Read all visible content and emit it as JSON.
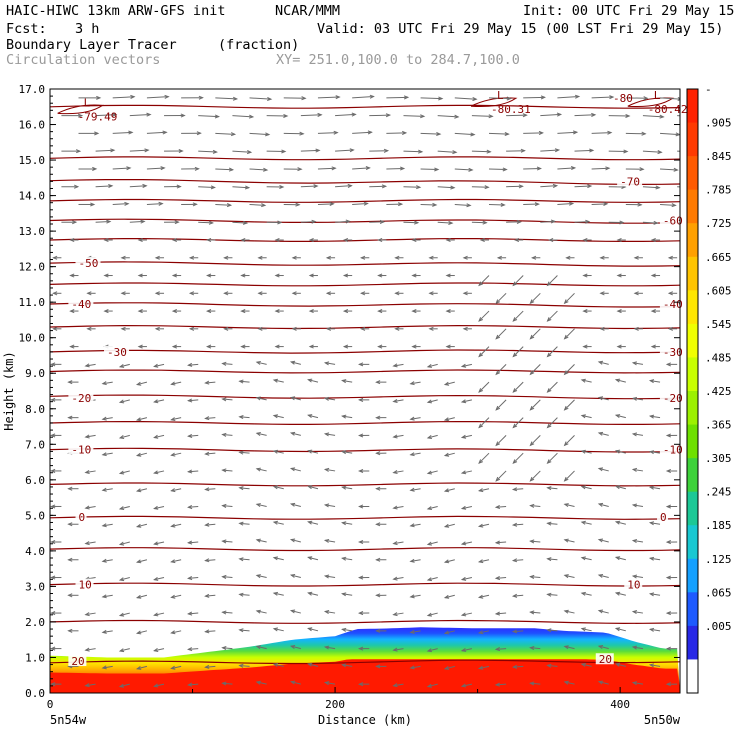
{
  "header": {
    "model_line": "HAIC-HIWC 13km ARW-GFS init",
    "org": "NCAR/MMM",
    "init": "Init: 00 UTC Fri 29 May 15",
    "fcst_label": "Fcst:",
    "fcst_value": "3 h",
    "valid": "Valid: 03 UTC Fri 29 May 15 (00 LST Fri 29 May 15)",
    "field_name": "Boundary Layer Tracer",
    "field_units": "(fraction)",
    "vectors_label": "Circulation vectors",
    "xy_label": "XY= 251.0,100.0 to 284.7,100.0"
  },
  "chart_data": {
    "type": "cross-section",
    "ylabel": "Height (km)",
    "xlabel": "Distance (km)",
    "ylim": [
      0,
      17
    ],
    "xlim": [
      0,
      442
    ],
    "yticks": [
      "0.0",
      "1.0",
      "2.0",
      "3.0",
      "4.0",
      "5.0",
      "6.0",
      "7.0",
      "8.0",
      "9.0",
      "10.0",
      "11.0",
      "12.0",
      "13.0",
      "14.0",
      "15.0",
      "16.0",
      "17.0"
    ],
    "xticks": [
      0,
      200,
      400
    ],
    "xticks_minor": [
      100,
      300
    ],
    "x_end_labels": {
      "left": "5n54w",
      "right": "5n50w"
    },
    "colorbar": {
      "labels": [
        "-",
        ".905",
        ".845",
        ".785",
        ".725",
        ".665",
        ".605",
        ".545",
        ".485",
        ".425",
        ".365",
        ".305",
        ".245",
        ".185",
        ".125",
        ".065",
        ".005"
      ],
      "colors": [
        "#ff2200",
        "#ff3a00",
        "#ff5a00",
        "#ff7a00",
        "#ffa000",
        "#ffc400",
        "#ffe600",
        "#f0ff00",
        "#c8ff00",
        "#9cf000",
        "#6ee000",
        "#3ed23a",
        "#1cc896",
        "#18c8d2",
        "#14a0ff",
        "#1e5aff",
        "#2828e6",
        "#ffffff"
      ]
    },
    "tracer_top_km": [
      [
        0,
        1.05
      ],
      [
        40,
        1.0
      ],
      [
        80,
        1.0
      ],
      [
        100,
        1.1
      ],
      [
        140,
        1.3
      ],
      [
        170,
        1.5
      ],
      [
        200,
        1.6
      ],
      [
        215,
        1.8
      ],
      [
        240,
        1.82
      ],
      [
        260,
        1.85
      ],
      [
        300,
        1.82
      ],
      [
        340,
        1.82
      ],
      [
        360,
        1.75
      ],
      [
        390,
        1.7
      ],
      [
        410,
        1.45
      ],
      [
        430,
        1.25
      ],
      [
        442,
        1.25
      ]
    ],
    "temperature_contours": [
      {
        "label": "-70",
        "heights": [
          [
            0,
            14.42
          ],
          [
            442,
            14.35
          ]
        ]
      },
      {
        "label": "-60",
        "heights": [
          [
            0,
            13.3
          ],
          [
            442,
            13.26
          ]
        ]
      },
      {
        "label": "-50",
        "heights": [
          [
            0,
            12.1
          ],
          [
            442,
            12.05
          ]
        ]
      },
      {
        "label": "-40",
        "heights": [
          [
            0,
            10.95
          ],
          [
            442,
            10.9
          ]
        ]
      },
      {
        "label": "-30",
        "heights": [
          [
            0,
            9.6
          ],
          [
            442,
            9.62
          ]
        ]
      },
      {
        "label": "-20",
        "heights": [
          [
            0,
            8.35
          ],
          [
            442,
            8.32
          ]
        ]
      },
      {
        "label": "-10",
        "heights": [
          [
            0,
            6.85
          ],
          [
            442,
            6.82
          ]
        ]
      },
      {
        "label": "0",
        "heights": [
          [
            0,
            4.93
          ],
          [
            442,
            4.93
          ]
        ]
      },
      {
        "label": "10",
        "heights": [
          [
            0,
            3.05
          ],
          [
            442,
            3.05
          ]
        ]
      },
      {
        "label": "20",
        "heights": [
          [
            0,
            0.85
          ],
          [
            442,
            0.9
          ]
        ]
      }
    ],
    "extra_contour_heights_km": [
      16.5,
      15.05,
      13.85,
      12.75,
      11.5,
      10.3,
      9.05,
      7.6,
      5.87,
      4.05,
      2.0
    ],
    "contour_labels": [
      {
        "text": "-70",
        "x": 400,
        "y": 14.4
      },
      {
        "text": "-60",
        "x": 430,
        "y": 13.3
      },
      {
        "text": "-50",
        "x": 20,
        "y": 12.1
      },
      {
        "text": "-40",
        "x": 15,
        "y": 10.95
      },
      {
        "text": "-40",
        "x": 430,
        "y": 10.95
      },
      {
        "text": "-30",
        "x": 40,
        "y": 9.6
      },
      {
        "text": "-30",
        "x": 430,
        "y": 9.6
      },
      {
        "text": "-20",
        "x": 15,
        "y": 8.3
      },
      {
        "text": "-20",
        "x": 430,
        "y": 8.3
      },
      {
        "text": "-10",
        "x": 15,
        "y": 6.85
      },
      {
        "text": "-10",
        "x": 430,
        "y": 6.85
      },
      {
        "text": "0",
        "x": 20,
        "y": 4.95
      },
      {
        "text": "0",
        "x": 428,
        "y": 4.95
      },
      {
        "text": "10",
        "x": 20,
        "y": 3.05
      },
      {
        "text": "10",
        "x": 405,
        "y": 3.05
      },
      {
        "text": "20",
        "x": 15,
        "y": 0.9
      },
      {
        "text": "20",
        "x": 385,
        "y": 0.95
      }
    ],
    "extrema": [
      {
        "mark": "L",
        "value": "-79.49",
        "x": 25,
        "y": 16.4
      },
      {
        "mark": "L",
        "value": "-80.31",
        "x": 315,
        "y": 16.6
      },
      {
        "mark": "L",
        "value": "-80.42",
        "x": 425,
        "y": 16.6
      }
    ],
    "upper_label": {
      "text": "-80",
      "x": 395,
      "y": 16.75
    }
  }
}
